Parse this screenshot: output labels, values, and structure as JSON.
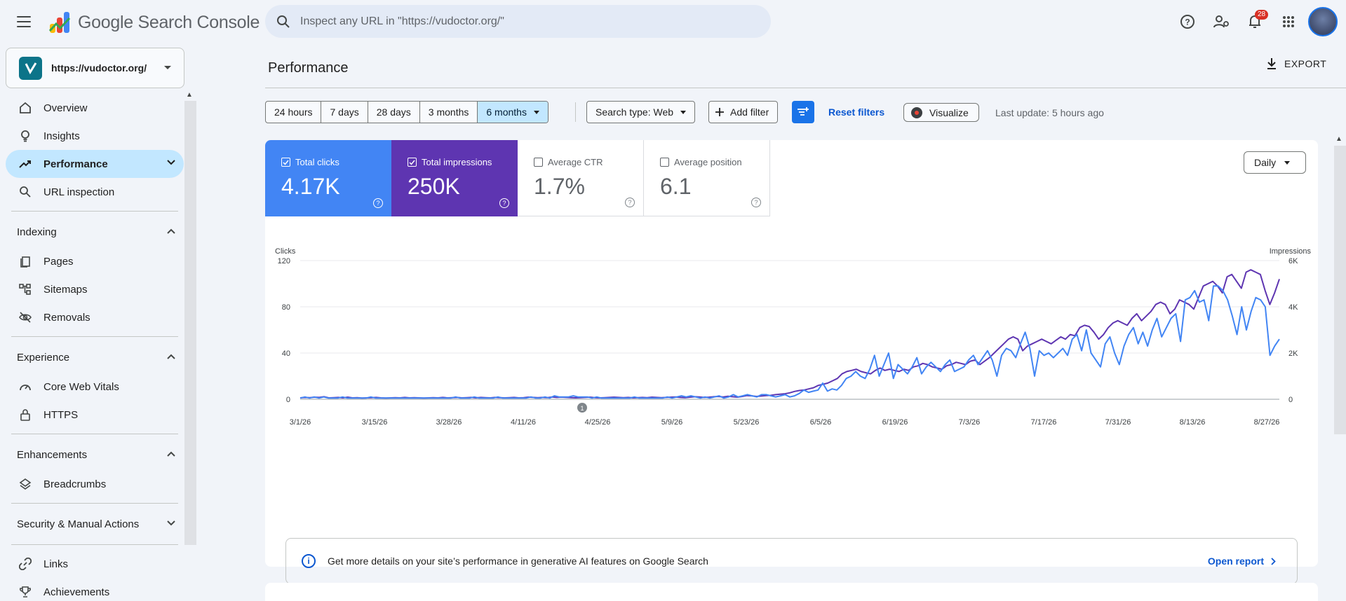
{
  "app": {
    "title": "Google Search Console"
  },
  "search": {
    "placeholder": "Inspect any URL in \"https://vudoctor.org/\""
  },
  "topbar": {
    "notification_count": "28"
  },
  "property": {
    "url": "https://vudoctor.org/"
  },
  "sidebar": {
    "primary": [
      "Overview",
      "Insights",
      "Performance",
      "URL inspection"
    ],
    "sections": [
      {
        "title": "Indexing",
        "items": [
          "Pages",
          "Sitemaps",
          "Removals"
        ]
      },
      {
        "title": "Experience",
        "items": [
          "Core Web Vitals",
          "HTTPS"
        ]
      },
      {
        "title": "Enhancements",
        "items": [
          "Breadcrumbs"
        ]
      },
      {
        "title": "Security & Manual Actions",
        "items": []
      }
    ],
    "extra": [
      "Links",
      "Achievements"
    ]
  },
  "page": {
    "title": "Performance",
    "export_label": "EXPORT"
  },
  "date_ranges": [
    "24 hours",
    "7 days",
    "28 days",
    "3 months",
    "6 months"
  ],
  "filters": {
    "search_type": "Search type: Web",
    "add_filter": "Add filter",
    "reset": "Reset filters",
    "visualize": "Visualize",
    "last_update": "Last update: 5 hours ago"
  },
  "metrics": [
    {
      "label": "Total clicks",
      "value": "4.17K",
      "checked": true
    },
    {
      "label": "Total impressions",
      "value": "250K",
      "checked": true
    },
    {
      "label": "Average CTR",
      "value": "1.7%",
      "checked": false
    },
    {
      "label": "Average position",
      "value": "6.1",
      "checked": false
    }
  ],
  "granularity": "Daily",
  "colors": {
    "clicks": "#4285f4",
    "impressions": "#5e35b1",
    "accent": "#1a73e8",
    "link": "#0b57d0"
  },
  "chart_data": {
    "type": "line",
    "y_left": {
      "label": "Clicks",
      "ticks": [
        "0",
        "40",
        "80",
        "120"
      ],
      "range": [
        0,
        120
      ]
    },
    "y_right": {
      "label": "Impressions",
      "ticks": [
        "0",
        "2K",
        "4K",
        "6K"
      ],
      "range": [
        0,
        6000
      ]
    },
    "x_ticks": [
      "3/1/26",
      "3/15/26",
      "3/28/26",
      "4/11/26",
      "4/25/26",
      "5/9/26",
      "5/23/26",
      "6/5/26",
      "6/19/26",
      "7/3/26",
      "7/17/26",
      "7/31/26",
      "8/13/26",
      "8/27/26"
    ],
    "annotation": {
      "label": "1"
    },
    "grid": true,
    "series": [
      {
        "name": "Total clicks",
        "axis": "left",
        "values": [
          1,
          2,
          1,
          2,
          1,
          2,
          1,
          1,
          1,
          2,
          1,
          1,
          1,
          1,
          1,
          2,
          1,
          1,
          1,
          1,
          1,
          1,
          1,
          1,
          1,
          1,
          1,
          1,
          1,
          1,
          1,
          1,
          1,
          2,
          1,
          1,
          1,
          2,
          1,
          1,
          1,
          1,
          2,
          1,
          1,
          1,
          1,
          1,
          1,
          2,
          1,
          1,
          2,
          1,
          3,
          2,
          2,
          2,
          3,
          2,
          2,
          2,
          1,
          2,
          1,
          1,
          1,
          1,
          1,
          1,
          1,
          2,
          1,
          1,
          1,
          1,
          1,
          1,
          2,
          1,
          2,
          3,
          2,
          3,
          2,
          1,
          2,
          1,
          2,
          3,
          1,
          2,
          4,
          2,
          3,
          4,
          3,
          2,
          4,
          4,
          3,
          2,
          3,
          4,
          2,
          3,
          5,
          8,
          6,
          7,
          8,
          14,
          7,
          9,
          8,
          12,
          18,
          20,
          24,
          20,
          18,
          26,
          38,
          20,
          30,
          40,
          18,
          30,
          26,
          22,
          28,
          36,
          22,
          28,
          32,
          28,
          24,
          30,
          34,
          24,
          26,
          28,
          34,
          38,
          30,
          36,
          42,
          34,
          20,
          38,
          44,
          42,
          36,
          48,
          58,
          44,
          20,
          42,
          38,
          40,
          36,
          40,
          44,
          38,
          52,
          56,
          42,
          60,
          40,
          34,
          28,
          48,
          54,
          40,
          30,
          46,
          56,
          62,
          48,
          58,
          46,
          60,
          70,
          54,
          62,
          70,
          74,
          50,
          86,
          88,
          94,
          84,
          86,
          68,
          98,
          98,
          94,
          86,
          72,
          56,
          80,
          60,
          76,
          88,
          86,
          80,
          38,
          46,
          52
        ]
      },
      {
        "name": "Total impressions",
        "axis": "right",
        "values": [
          60,
          80,
          70,
          90,
          80,
          110,
          60,
          70,
          80,
          60,
          90,
          60,
          70,
          50,
          60,
          70,
          80,
          60,
          50,
          60,
          70,
          60,
          80,
          60,
          70,
          60,
          50,
          60,
          70,
          60,
          80,
          60,
          70,
          80,
          60,
          70,
          80,
          60,
          80,
          70,
          60,
          80,
          70,
          60,
          70,
          80,
          60,
          70,
          90,
          80,
          70,
          80,
          70,
          100,
          80,
          90,
          80,
          70,
          60,
          70,
          80,
          90,
          70,
          60,
          70,
          80,
          90,
          80,
          70,
          80,
          60,
          70,
          80,
          70,
          90,
          80,
          70,
          80,
          90,
          100,
          80,
          70,
          90,
          110,
          100,
          80,
          90,
          110,
          120,
          100,
          130,
          110,
          90,
          120,
          160,
          150,
          120,
          140,
          160,
          170,
          200,
          220,
          240,
          280,
          340,
          380,
          400,
          450,
          500,
          600,
          650,
          700,
          800,
          900,
          1100,
          1200,
          1250,
          1300,
          1200,
          1150,
          1100,
          1250,
          1350,
          1250,
          1300,
          1250,
          1200,
          1300,
          1250,
          1400,
          1450,
          1550,
          1500,
          1400,
          1350,
          1300,
          1450,
          1500,
          1600,
          1550,
          1500,
          1650,
          1700,
          1500,
          1650,
          1800,
          2000,
          2200,
          2400,
          2600,
          2700,
          2600,
          2100,
          2300,
          2400,
          2500,
          2600,
          2500,
          2400,
          2550,
          2700,
          2600,
          2800,
          2750,
          3100,
          3200,
          3150,
          2900,
          2600,
          2800,
          3100,
          3300,
          3400,
          3300,
          3200,
          3500,
          3700,
          3400,
          3600,
          3800,
          4100,
          4200,
          4100,
          3700,
          3900,
          4300,
          4200,
          4100,
          3900,
          4400,
          4900,
          5000,
          5100,
          4900,
          4600,
          5300,
          5400,
          5100,
          4800,
          5500,
          5600,
          5500,
          5400,
          4700,
          4100,
          4600,
          5200
        ]
      }
    ]
  },
  "banner": {
    "text": "Get more details on your site’s performance in generative AI features on Google Search",
    "action": "Open report"
  }
}
